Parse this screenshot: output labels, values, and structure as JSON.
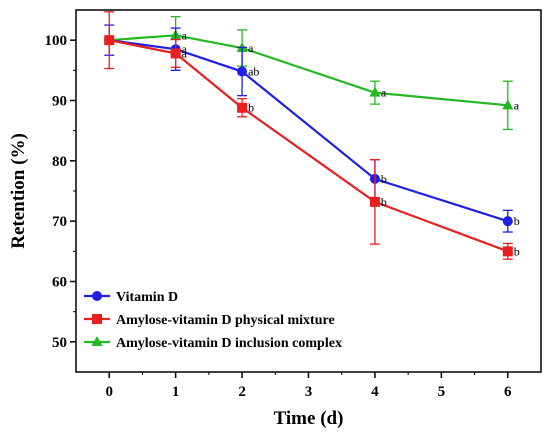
{
  "chart_data": {
    "type": "line",
    "xlabel": "Time (d)",
    "ylabel": "Retention (%)",
    "xlim": [
      -0.5,
      6.5
    ],
    "ylim": [
      45,
      105
    ],
    "xticks": [
      0,
      1,
      2,
      3,
      4,
      5,
      6
    ],
    "yticks": [
      50,
      60,
      70,
      80,
      90,
      100
    ],
    "grid": false,
    "legend_position": "bottom-left",
    "series": [
      {
        "name": "Vitamin D",
        "color": "#1f1fe6",
        "marker": "circle",
        "x": [
          0,
          1,
          2,
          4,
          6
        ],
        "y": [
          100,
          98.5,
          94.8,
          77,
          70
        ],
        "err": [
          2.5,
          3.5,
          4.0,
          3.2,
          1.8
        ],
        "labels": [
          "",
          "a",
          "ab",
          "b",
          "b"
        ]
      },
      {
        "name": "Amylose-vitamin D physical mixture",
        "color": "#e81f1f",
        "marker": "square",
        "x": [
          0,
          1,
          2,
          4,
          6
        ],
        "y": [
          100,
          97.8,
          88.8,
          73.2,
          65
        ],
        "err": [
          4.7,
          2.3,
          1.5,
          7.0,
          1.3
        ],
        "labels": [
          "",
          "a",
          "b",
          "b",
          "b"
        ]
      },
      {
        "name": "Amylose-vitamin D inclusion complex",
        "color": "#22b822",
        "marker": "triangle",
        "x": [
          0,
          1,
          2,
          4,
          6
        ],
        "y": [
          100,
          100.8,
          98.7,
          91.3,
          89.2
        ],
        "err": [
          0,
          3.1,
          3.0,
          1.9,
          4.0
        ],
        "labels": [
          "",
          "a",
          "a",
          "a",
          "a"
        ]
      }
    ]
  }
}
